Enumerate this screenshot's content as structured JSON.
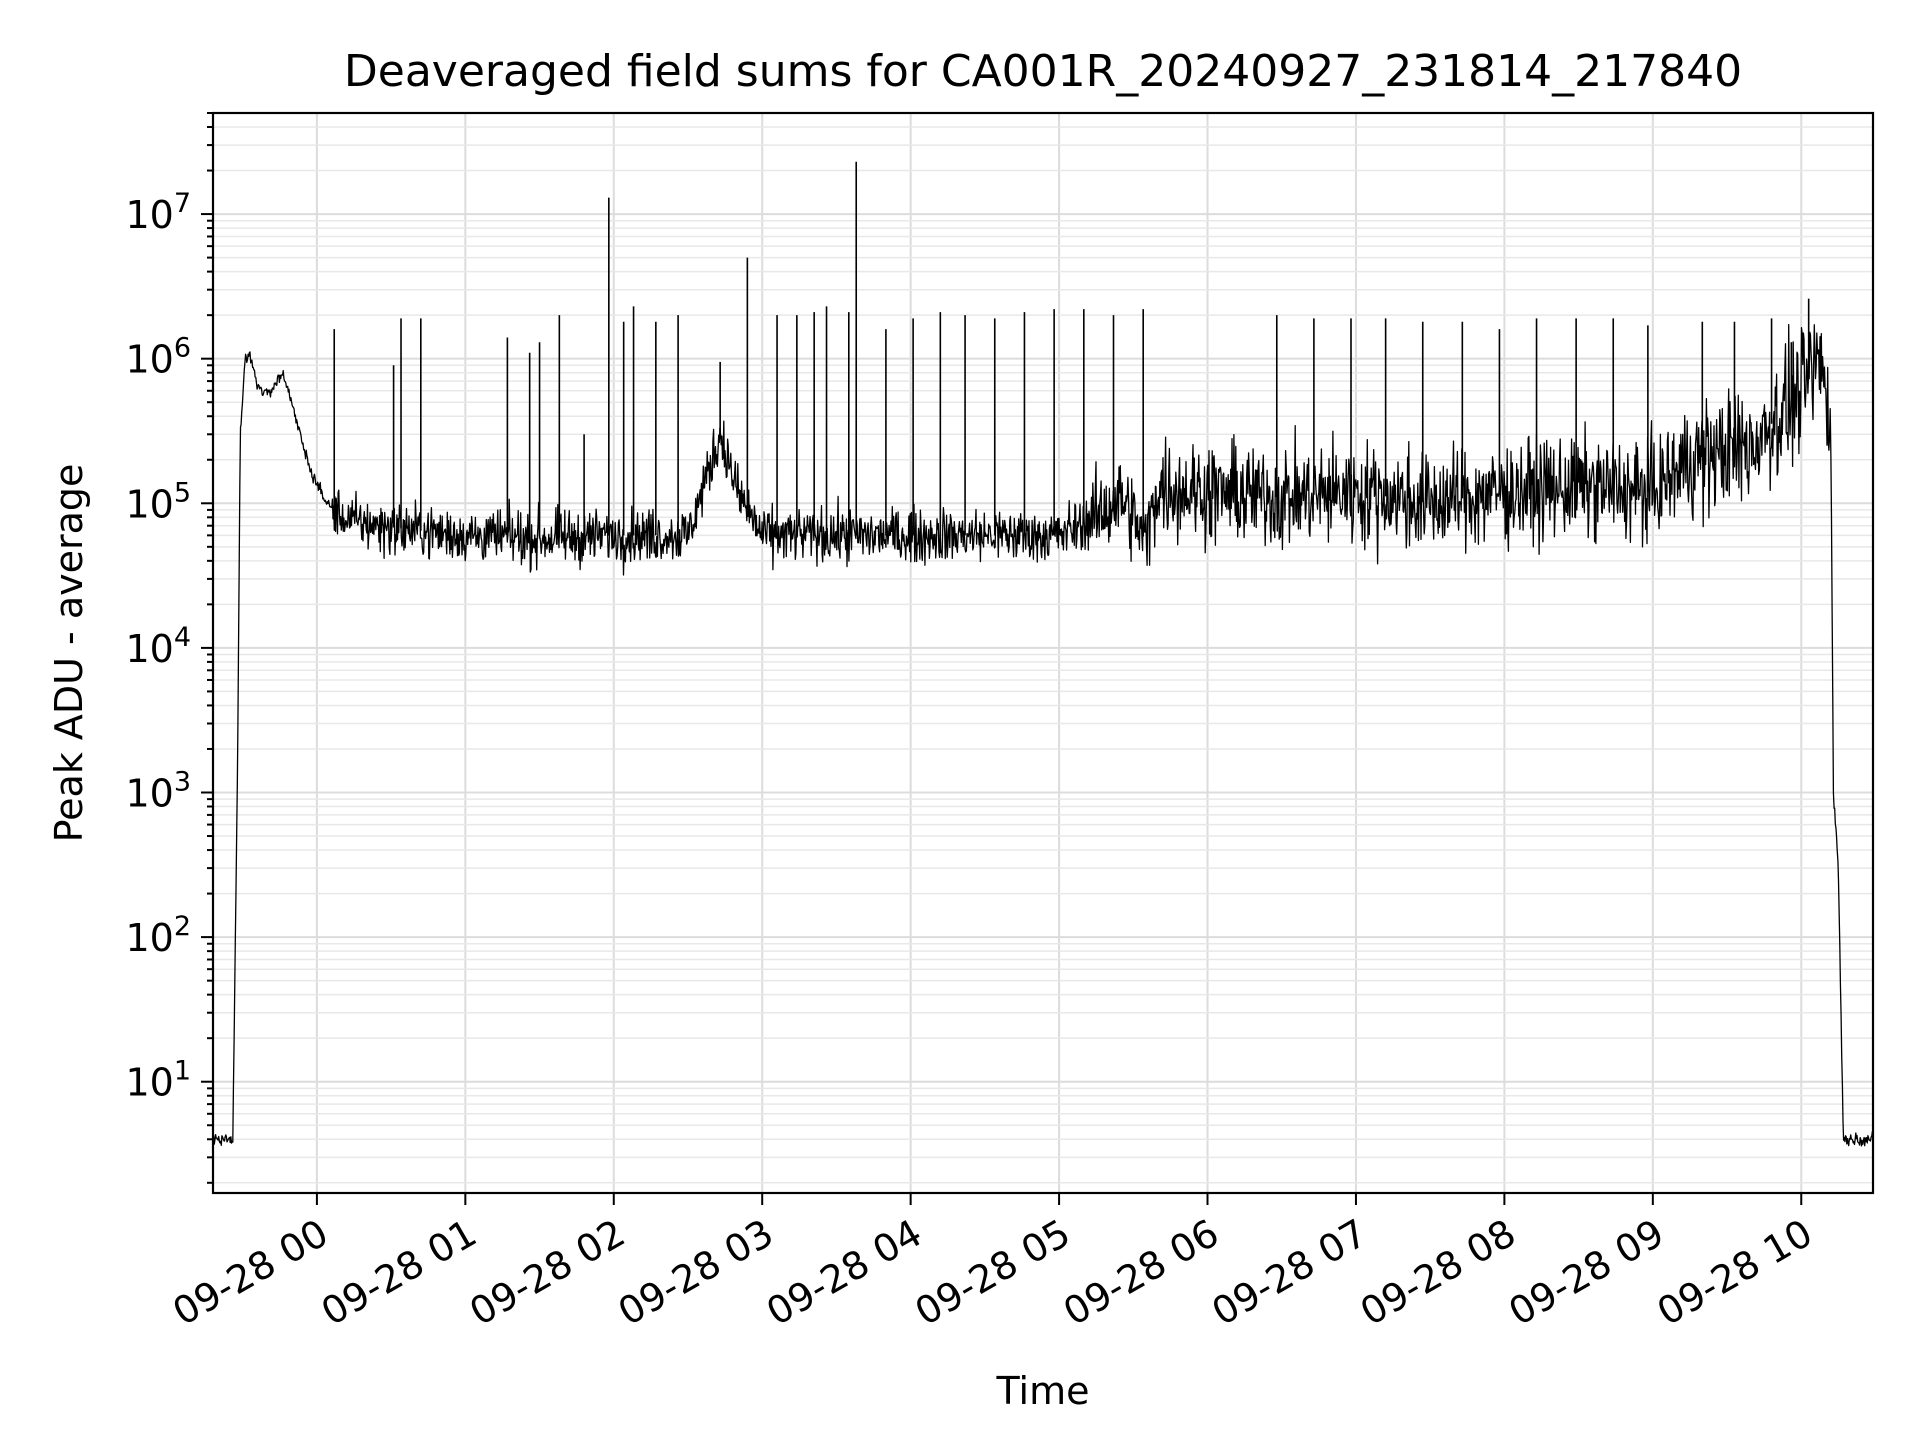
{
  "chart_data": {
    "type": "line",
    "title": "Deaveraged field sums for CA001R_20240927_231814_217840",
    "xlabel": "Time",
    "ylabel": "Peak ADU - average",
    "x_ticks": [
      "09-28 00",
      "09-28 01",
      "09-28 02",
      "09-28 03",
      "09-28 04",
      "09-28 05",
      "09-28 06",
      "09-28 07",
      "09-28 08",
      "09-28 09",
      "09-28 10"
    ],
    "y_scale": "log",
    "y_ticks": [
      {
        "base": "10",
        "exp": "1"
      },
      {
        "base": "10",
        "exp": "2"
      },
      {
        "base": "10",
        "exp": "3"
      },
      {
        "base": "10",
        "exp": "4"
      },
      {
        "base": "10",
        "exp": "5"
      },
      {
        "base": "10",
        "exp": "6"
      },
      {
        "base": "10",
        "exp": "7"
      }
    ],
    "xlim": [
      "2024-09-27 23:18",
      "2024-09-28 10:29"
    ],
    "ylim": [
      1.7,
      50000000
    ],
    "grid": true,
    "series": [
      {
        "color": "#000000",
        "points": [
          [
            "2024-09-27 23:18",
            4
          ],
          [
            "2024-09-27 23:26",
            4
          ],
          [
            "2024-09-27 23:27",
            90
          ],
          [
            "2024-09-27 23:28",
            2000
          ],
          [
            "2024-09-27 23:29",
            300000
          ],
          [
            "2024-09-27 23:31",
            1000000
          ],
          [
            "2024-09-27 23:33",
            1050000
          ],
          [
            "2024-09-27 23:36",
            650000
          ],
          [
            "2024-09-27 23:40",
            560000
          ],
          [
            "2024-09-27 23:44",
            700000
          ],
          [
            "2024-09-27 23:46",
            800000
          ],
          [
            "2024-09-27 23:50",
            500000
          ],
          [
            "2024-09-27 23:54",
            260000
          ],
          [
            "2024-09-27 23:58",
            160000
          ],
          [
            "2024-09-28 00:04",
            100000
          ],
          [
            "2024-09-28 00:10",
            80000
          ],
          [
            "2024-09-28 00:20",
            72000
          ],
          [
            "2024-09-28 00:40",
            65000
          ],
          [
            "2024-09-28 01:00",
            60000
          ],
          [
            "2024-09-28 01:30",
            57000
          ],
          [
            "2024-09-28 02:00",
            60000
          ],
          [
            "2024-09-28 02:30",
            60000
          ],
          [
            "2024-09-28 02:43",
            300000
          ],
          [
            "2024-09-28 02:50",
            120000
          ],
          [
            "2024-09-28 03:00",
            60000
          ],
          [
            "2024-09-28 03:30",
            60000
          ],
          [
            "2024-09-28 04:00",
            60000
          ],
          [
            "2024-09-28 04:30",
            60000
          ],
          [
            "2024-09-28 05:00",
            60000
          ],
          [
            "2024-09-28 05:15",
            80000
          ],
          [
            "2024-09-28 05:25",
            110000
          ],
          [
            "2024-09-28 05:35",
            55000
          ],
          [
            "2024-09-28 05:40",
            130000
          ],
          [
            "2024-09-28 06:00",
            120000
          ],
          [
            "2024-09-28 06:30",
            110000
          ],
          [
            "2024-09-28 07:00",
            120000
          ],
          [
            "2024-09-28 07:30",
            100000
          ],
          [
            "2024-09-28 08:00",
            120000
          ],
          [
            "2024-09-28 08:30",
            130000
          ],
          [
            "2024-09-28 09:00",
            120000
          ],
          [
            "2024-09-28 09:15",
            200000
          ],
          [
            "2024-09-28 09:40",
            250000
          ],
          [
            "2024-09-28 10:00",
            600000
          ],
          [
            "2024-09-28 10:08",
            1000000
          ],
          [
            "2024-09-28 10:12",
            300000
          ],
          [
            "2024-09-28 10:13",
            1000
          ],
          [
            "2024-09-28 10:15",
            300
          ],
          [
            "2024-09-28 10:17",
            4
          ],
          [
            "2024-09-28 10:29",
            4
          ]
        ]
      }
    ],
    "spikes": [
      [
        "2024-09-28 00:07",
        1600000
      ],
      [
        "2024-09-28 00:31",
        900000
      ],
      [
        "2024-09-28 00:34",
        1900000
      ],
      [
        "2024-09-28 00:42",
        1900000
      ],
      [
        "2024-09-28 01:17",
        1400000
      ],
      [
        "2024-09-28 01:26",
        1100000
      ],
      [
        "2024-09-28 01:30",
        1300000
      ],
      [
        "2024-09-28 01:38",
        2000000
      ],
      [
        "2024-09-28 01:48",
        300000
      ],
      [
        "2024-09-28 01:58",
        13000000
      ],
      [
        "2024-09-28 02:04",
        1800000
      ],
      [
        "2024-09-28 02:08",
        2300000
      ],
      [
        "2024-09-28 02:17",
        1800000
      ],
      [
        "2024-09-28 02:26",
        2000000
      ],
      [
        "2024-09-28 02:43",
        950000
      ],
      [
        "2024-09-28 02:54",
        5000000
      ],
      [
        "2024-09-28 03:06",
        2000000
      ],
      [
        "2024-09-28 03:14",
        2000000
      ],
      [
        "2024-09-28 03:21",
        2100000
      ],
      [
        "2024-09-28 03:26",
        2300000
      ],
      [
        "2024-09-28 03:35",
        2100000
      ],
      [
        "2024-09-28 03:38",
        23000000
      ],
      [
        "2024-09-28 03:50",
        1600000
      ],
      [
        "2024-09-28 04:01",
        1900000
      ],
      [
        "2024-09-28 04:12",
        2100000
      ],
      [
        "2024-09-28 04:22",
        2000000
      ],
      [
        "2024-09-28 04:34",
        1900000
      ],
      [
        "2024-09-28 04:46",
        2100000
      ],
      [
        "2024-09-28 04:58",
        2200000
      ],
      [
        "2024-09-28 05:10",
        2200000
      ],
      [
        "2024-09-28 05:22",
        2000000
      ],
      [
        "2024-09-28 05:34",
        2200000
      ],
      [
        "2024-09-28 06:28",
        2000000
      ],
      [
        "2024-09-28 06:43",
        1900000
      ],
      [
        "2024-09-28 06:58",
        1900000
      ],
      [
        "2024-09-28 07:12",
        1900000
      ],
      [
        "2024-09-28 07:27",
        1800000
      ],
      [
        "2024-09-28 07:43",
        1800000
      ],
      [
        "2024-09-28 07:58",
        1600000
      ],
      [
        "2024-09-28 08:13",
        1900000
      ],
      [
        "2024-09-28 08:29",
        1900000
      ],
      [
        "2024-09-28 08:44",
        1900000
      ],
      [
        "2024-09-28 08:58",
        1700000
      ],
      [
        "2024-09-28 09:20",
        1800000
      ],
      [
        "2024-09-28 09:33",
        1800000
      ],
      [
        "2024-09-28 09:48",
        1900000
      ],
      [
        "2024-09-28 09:56",
        1300000
      ],
      [
        "2024-09-28 10:03",
        2600000
      ]
    ]
  }
}
